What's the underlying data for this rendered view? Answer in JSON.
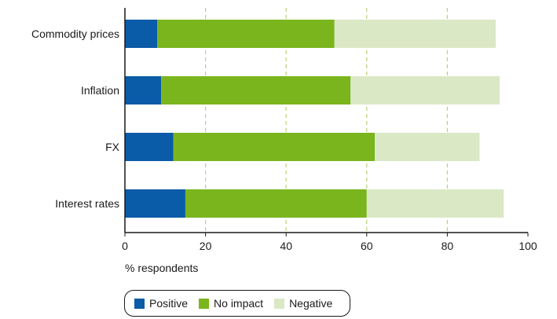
{
  "chart_data": {
    "type": "bar",
    "orientation": "horizontal",
    "stacked": true,
    "categories": [
      "Commodity prices",
      "Inflation",
      "FX",
      "Interest rates"
    ],
    "series": [
      {
        "name": "Positive",
        "color": "#0a5ba8",
        "values": [
          8,
          9,
          12,
          15
        ]
      },
      {
        "name": "No impact",
        "color": "#7ab51d",
        "values": [
          44,
          47,
          50,
          45
        ]
      },
      {
        "name": "Negative",
        "color": "#dbe8c5",
        "values": [
          40,
          37,
          26,
          34
        ]
      }
    ],
    "xlabel": "% respondents",
    "xlim": [
      0,
      100
    ],
    "xticks": [
      "0",
      "20",
      "40",
      "60",
      "80",
      "100"
    ],
    "grid": "vertical dashed",
    "legend_position": "bottom"
  }
}
